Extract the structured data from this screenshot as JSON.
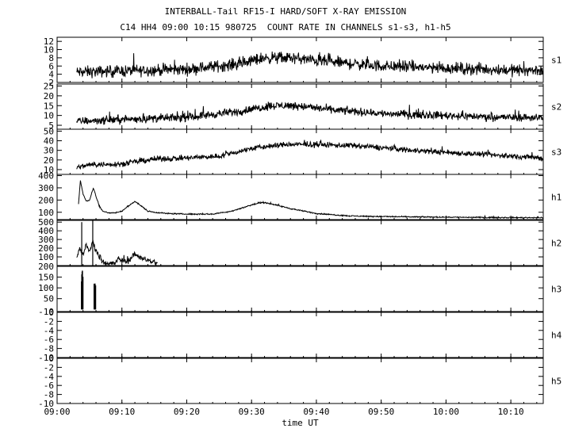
{
  "header": {
    "title": "INTERBALL-Tail RF15-I HARD/SOFT X-RAY EMISSION",
    "subtitle": "C14 HH4 09:00 10:15 980725  COUNT RATE IN CHANNELS s1-s3, h1-h5"
  },
  "chart_data": {
    "type": "line",
    "xlabel": "time UT",
    "x_ticks": [
      "09:00",
      "09:10",
      "09:20",
      "09:30",
      "09:40",
      "09:50",
      "10:00",
      "10:10"
    ],
    "x_tick_minutes": [
      0,
      10,
      20,
      30,
      40,
      50,
      60,
      70
    ],
    "x_range_minutes": [
      0,
      75
    ],
    "panels": [
      {
        "name": "s1",
        "ylim": [
          2,
          13
        ],
        "yticks": [
          2,
          4,
          6,
          8,
          10,
          12
        ],
        "data_start_min": 3.0,
        "data_end_min": 75,
        "envelope": {
          "x": [
            3,
            10,
            20,
            28,
            32,
            36,
            42,
            50,
            60,
            70,
            75
          ],
          "y": [
            4.5,
            4.8,
            5.2,
            6.5,
            8.0,
            8.0,
            7.0,
            6.0,
            5.5,
            5.0,
            5.0
          ]
        },
        "noise_amplitude": 3.5
      },
      {
        "name": "s2",
        "ylim": [
          3,
          26
        ],
        "yticks": [
          5,
          10,
          15,
          20,
          25
        ],
        "data_start_min": 3.0,
        "data_end_min": 75,
        "envelope": {
          "x": [
            3,
            10,
            20,
            28,
            33,
            37,
            42,
            50,
            60,
            70,
            75
          ],
          "y": [
            7,
            8,
            9,
            12,
            15,
            15,
            13,
            11,
            10,
            9,
            9
          ]
        },
        "noise_amplitude": 5
      },
      {
        "name": "s3",
        "ylim": [
          5,
          52
        ],
        "yticks": [
          10,
          20,
          30,
          40,
          50
        ],
        "data_start_min": 3.0,
        "data_end_min": 75,
        "envelope": {
          "x": [
            3,
            5,
            10,
            15,
            20,
            25,
            30,
            35,
            40,
            45,
            50,
            55,
            60,
            65,
            70,
            75
          ],
          "y": [
            12,
            15,
            16,
            21,
            22,
            24,
            32,
            36,
            36,
            35,
            33,
            30,
            28,
            26,
            24,
            22
          ]
        },
        "noise_amplitude": 7
      },
      {
        "name": "h1",
        "ylim": [
          40,
          410
        ],
        "yticks": [
          100,
          200,
          300,
          400
        ],
        "data_start_min": 3.3,
        "data_end_min": 75,
        "envelope": {
          "x": [
            3.3,
            3.6,
            4.0,
            4.5,
            5.0,
            5.6,
            6.0,
            6.5,
            7.0,
            8.0,
            9.0,
            10.0,
            11.0,
            12.0,
            13.0,
            14.0,
            15.0,
            17.0,
            20.0,
            24.0,
            27.0,
            30.0,
            31.5,
            33.0,
            36.0,
            40.0,
            45.0,
            50.0,
            55.0,
            60.0,
            65.0,
            70.0,
            75.0
          ],
          "y": [
            170,
            360,
            250,
            190,
            200,
            300,
            230,
            150,
            110,
            95,
            95,
            110,
            150,
            190,
            150,
            110,
            100,
            90,
            85,
            85,
            110,
            160,
            180,
            170,
            130,
            90,
            70,
            65,
            62,
            60,
            58,
            56,
            56
          ]
        },
        "noise_amplitude": 12
      },
      {
        "name": "h2",
        "ylim": [
          0,
          520
        ],
        "yticks": [
          100,
          200,
          300,
          400,
          500
        ],
        "data_start_min": 3.0,
        "data_end_min": 15.5,
        "envelope": {
          "x": [
            3.0,
            3.5,
            4.0,
            4.5,
            5.0,
            5.5,
            6.0,
            6.5,
            7.0,
            7.5,
            8.0,
            9.0,
            9.5,
            10.0,
            11.0,
            11.5,
            12.0,
            13.0,
            14.0,
            15.0,
            15.5
          ],
          "y": [
            80,
            200,
            120,
            250,
            150,
            280,
            180,
            100,
            60,
            30,
            20,
            30,
            80,
            60,
            50,
            100,
            130,
            90,
            60,
            40,
            20
          ]
        },
        "noise_amplitude": 80,
        "extra_spikes": [
          {
            "x": 5.5,
            "y": 520
          },
          {
            "x": 3.8,
            "y": 500
          }
        ]
      },
      {
        "name": "h3",
        "ylim": [
          -10,
          200
        ],
        "yticks": [
          -10,
          50,
          100,
          150,
          200
        ],
        "data_start_min": 3.5,
        "data_end_min": 6.0,
        "spikes": [
          {
            "x": 3.9,
            "y": 180
          },
          {
            "x": 5.85,
            "y": 120
          }
        ]
      },
      {
        "name": "h4",
        "ylim": [
          -10,
          0
        ],
        "yticks": [
          -10,
          -8,
          -6,
          -4,
          -2,
          0
        ],
        "data_start_min": null,
        "data_end_min": null
      },
      {
        "name": "h5",
        "ylim": [
          -10,
          0
        ],
        "yticks": [
          -10,
          -8,
          -6,
          -4,
          -2,
          0
        ],
        "data_start_min": null,
        "data_end_min": null
      }
    ]
  }
}
